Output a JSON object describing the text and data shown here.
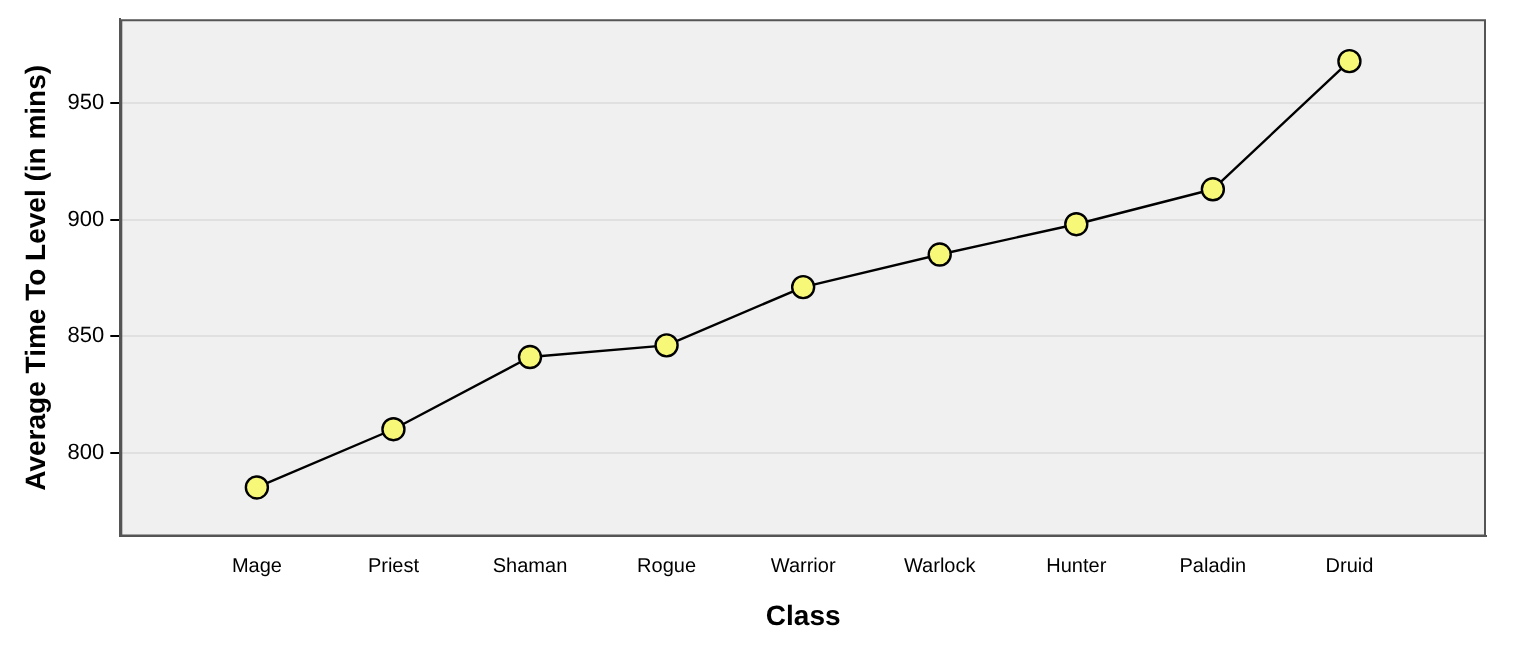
{
  "chart_data": {
    "type": "line",
    "xlabel": "Class",
    "ylabel": "Average Time To Level (in mins)",
    "categories": [
      "Mage",
      "Priest",
      "Shaman",
      "Rogue",
      "Warrior",
      "Warlock",
      "Hunter",
      "Paladin",
      "Druid"
    ],
    "values": [
      785,
      810,
      841,
      846,
      871,
      885,
      898,
      913,
      968
    ],
    "color": "#000000",
    "marker": "circle",
    "line_style": "solid",
    "ylim": [
      764,
      986
    ],
    "yticks": [
      800,
      850,
      900,
      950
    ],
    "grid": "y",
    "legend": false
  }
}
